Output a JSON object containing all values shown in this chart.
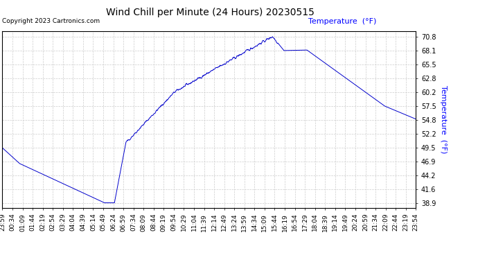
{
  "title": "Wind Chill per Minute (24 Hours) 20230515",
  "ylabel": "Temperature  (°F)",
  "ylabel_color": "#0000ff",
  "copyright": "Copyright 2023 Cartronics.com",
  "background_color": "#ffffff",
  "plot_bg_color": "#ffffff",
  "line_color": "#0000cc",
  "grid_color": "#cccccc",
  "yticks": [
    38.9,
    41.6,
    44.2,
    46.9,
    49.5,
    52.2,
    54.8,
    57.5,
    60.2,
    62.8,
    65.5,
    68.1,
    70.8
  ],
  "ylim": [
    38.0,
    71.8
  ],
  "xtick_labels": [
    "23:59",
    "00:34",
    "01:09",
    "01:44",
    "02:19",
    "02:54",
    "03:29",
    "04:04",
    "04:39",
    "05:14",
    "05:49",
    "06:24",
    "06:59",
    "07:34",
    "08:09",
    "08:44",
    "09:19",
    "09:54",
    "10:29",
    "11:04",
    "11:39",
    "12:14",
    "12:49",
    "13:24",
    "13:59",
    "14:34",
    "15:09",
    "15:44",
    "16:19",
    "16:54",
    "17:29",
    "18:04",
    "18:39",
    "19:14",
    "19:49",
    "20:24",
    "20:59",
    "21:34",
    "22:09",
    "22:44",
    "23:19",
    "23:54"
  ],
  "num_points": 1440,
  "title_fontsize": 10,
  "tick_fontsize": 7,
  "ylabel_fontsize": 8
}
